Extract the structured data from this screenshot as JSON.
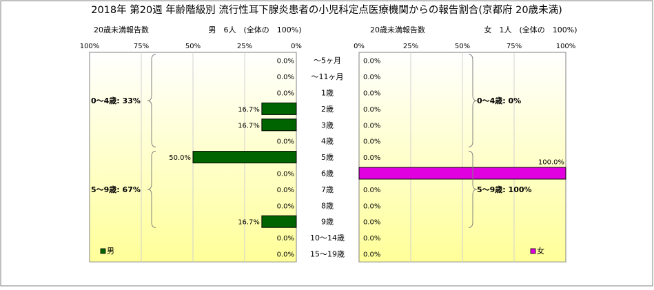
{
  "title": "2018年 第20週 年齢階級別 流行性耳下腺炎患者の小児科定点医療機関からの報告割合(京都府 20歳未満)",
  "colors": {
    "male": "#006400",
    "female": "#e000e0",
    "bg_top": "#ffffff",
    "bg_bottom": "#ffff99"
  },
  "chart_data": [
    {
      "type": "bar",
      "orientation": "horizontal-reversed",
      "subtitle_left": "20歳未満報告数",
      "subtitle_right": "男　6人　(全体の　100%)",
      "categories": [
        "～5ヶ月",
        "～11ヶ月",
        "1歳",
        "2歳",
        "3歳",
        "4歳",
        "5歳",
        "6歳",
        "7歳",
        "8歳",
        "9歳",
        "10～14歳",
        "15～19歳"
      ],
      "series": [
        {
          "name": "男",
          "values": [
            0.0,
            0.0,
            0.0,
            16.7,
            16.7,
            0.0,
            50.0,
            0.0,
            0.0,
            0.0,
            16.7,
            0.0,
            0.0
          ],
          "labels": [
            "0.0%",
            "0.0%",
            "0.0%",
            "16.7%",
            "16.7%",
            "0.0%",
            "50.0%",
            "0.0%",
            "0.0%",
            "0.0%",
            "16.7%",
            "0.0%",
            "0.0%"
          ]
        }
      ],
      "ticks": [
        "100%",
        "75%",
        "50%",
        "25%",
        "0%"
      ],
      "xlim": [
        0,
        100
      ],
      "groups": [
        {
          "label": "0～4歳: 33%",
          "from": 0,
          "to": 5
        },
        {
          "label": "5～9歳: 67%",
          "from": 6,
          "to": 10
        }
      ],
      "legend": "bottom-left"
    },
    {
      "type": "bar",
      "orientation": "horizontal",
      "subtitle_left": "20歳未満報告数",
      "subtitle_right": "女　1人　(全体の　100%)",
      "categories": [
        "～5ヶ月",
        "～11ヶ月",
        "1歳",
        "2歳",
        "3歳",
        "4歳",
        "5歳",
        "6歳",
        "7歳",
        "8歳",
        "9歳",
        "10～14歳",
        "15～19歳"
      ],
      "series": [
        {
          "name": "女",
          "values": [
            0.0,
            0.0,
            0.0,
            0.0,
            0.0,
            0.0,
            0.0,
            100.0,
            0.0,
            0.0,
            0.0,
            0.0,
            0.0
          ],
          "labels": [
            "0.0%",
            "0.0%",
            "0.0%",
            "0.0%",
            "0.0%",
            "0.0%",
            "0.0%",
            "100.0%",
            "0.0%",
            "0.0%",
            "0.0%",
            "0.0%",
            "0.0%"
          ]
        }
      ],
      "ticks": [
        "0%",
        "25%",
        "50%",
        "75%",
        "100%"
      ],
      "xlim": [
        0,
        100
      ],
      "groups": [
        {
          "label": "0～4歳: 0%",
          "from": 0,
          "to": 5
        },
        {
          "label": "5～9歳: 100%",
          "from": 6,
          "to": 10
        }
      ],
      "legend": "bottom-right"
    }
  ]
}
